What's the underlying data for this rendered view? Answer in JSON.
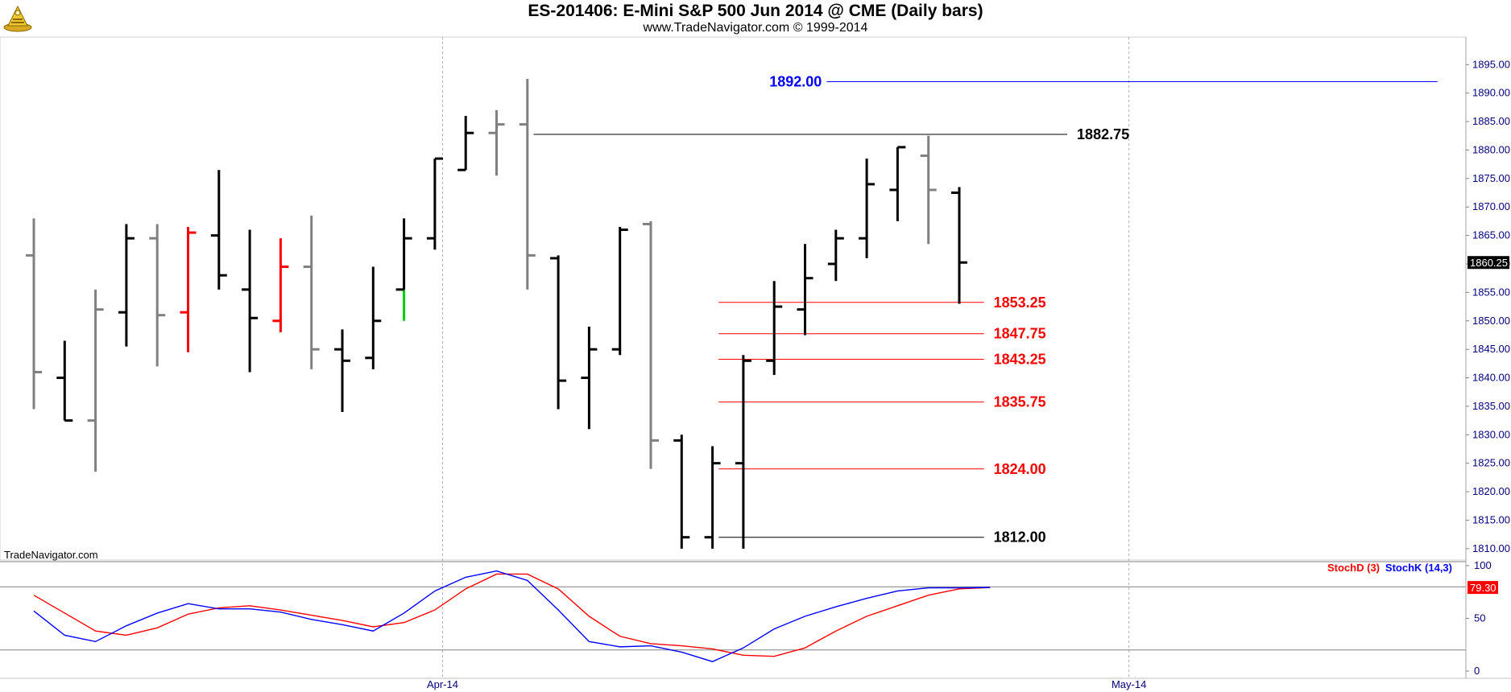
{
  "header": {
    "title": "ES-201406:  E-Mini S&P 500 Jun 2014 @ CME  (Daily bars)",
    "subtitle": "www.TradeNavigator.com © 1999-2014",
    "watermark": "TradeNavigator.com"
  },
  "colors": {
    "bar_black": "#000000",
    "bar_gray": "#808080",
    "bar_red": "#ff0000",
    "bar_green": "#00cc00",
    "level_red": "#ff0000",
    "level_blue": "#0000ff",
    "stochK": "#0000ff",
    "stochD": "#ff0000",
    "grid": "#c8c8c8",
    "axis_text": "#000080"
  },
  "chart_data": [
    {
      "type": "ohlc",
      "ylim": [
        1808,
        1899
      ],
      "y_ticks": [
        1810,
        1815,
        1820,
        1825,
        1830,
        1835,
        1840,
        1845,
        1850,
        1855,
        1860,
        1865,
        1870,
        1875,
        1880,
        1885,
        1890,
        1895
      ],
      "x_labels": [
        {
          "label": "Apr-14",
          "index": 13.25
        },
        {
          "label": "May-14",
          "index": 35.5
        }
      ],
      "last_price": "1860.25",
      "bars": [
        {
          "o": 1861.5,
          "h": 1868,
          "l": 1834.5,
          "c": 1841,
          "color": "gray"
        },
        {
          "o": 1840,
          "h": 1846.5,
          "l": 1832.5,
          "c": 1832.5,
          "color": "black"
        },
        {
          "o": 1832.5,
          "h": 1855.5,
          "l": 1823.5,
          "c": 1852,
          "color": "gray"
        },
        {
          "o": 1851.5,
          "h": 1867,
          "l": 1845.5,
          "c": 1864.5,
          "color": "black"
        },
        {
          "o": 1864.5,
          "h": 1867,
          "l": 1842,
          "c": 1851,
          "color": "gray"
        },
        {
          "o": 1851.5,
          "h": 1866.5,
          "l": 1844.5,
          "c": 1865.5,
          "color": "red"
        },
        {
          "o": 1865,
          "h": 1876.5,
          "l": 1855.5,
          "c": 1858,
          "color": "black"
        },
        {
          "o": 1855.5,
          "h": 1866,
          "l": 1841,
          "c": 1850.5,
          "color": "black"
        },
        {
          "o": 1850,
          "h": 1864.5,
          "l": 1848,
          "c": 1859.5,
          "color": "red"
        },
        {
          "o": 1859.5,
          "h": 1868.5,
          "l": 1841.5,
          "c": 1845,
          "color": "gray"
        },
        {
          "o": 1845,
          "h": 1848.5,
          "l": 1834,
          "c": 1843,
          "color": "black"
        },
        {
          "o": 1843.5,
          "h": 1859.5,
          "l": 1841.5,
          "c": 1850,
          "color": "black"
        },
        {
          "o": 1855.5,
          "h": 1868,
          "l": 1850,
          "c": 1864.5,
          "color": "black",
          "low_color": "green"
        },
        {
          "o": 1864.5,
          "h": 1878.5,
          "l": 1862.5,
          "c": 1878.5,
          "color": "black"
        },
        {
          "o": 1876.5,
          "h": 1886,
          "l": 1876.5,
          "c": 1883,
          "color": "black"
        },
        {
          "o": 1883,
          "h": 1887,
          "l": 1875.5,
          "c": 1884.5,
          "color": "gray"
        },
        {
          "o": 1884.5,
          "h": 1892.5,
          "l": 1855.5,
          "c": 1861.5,
          "color": "gray"
        },
        {
          "o": 1861,
          "h": 1861.5,
          "l": 1834.5,
          "c": 1839.5,
          "color": "black"
        },
        {
          "o": 1840,
          "h": 1849,
          "l": 1831,
          "c": 1845,
          "color": "black"
        },
        {
          "o": 1845,
          "h": 1866.5,
          "l": 1844,
          "c": 1866,
          "color": "black"
        },
        {
          "o": 1867,
          "h": 1867.5,
          "l": 1824,
          "c": 1829,
          "color": "gray"
        },
        {
          "o": 1829,
          "h": 1830,
          "l": 1810,
          "c": 1812,
          "color": "black"
        },
        {
          "o": 1812,
          "h": 1828,
          "l": 1810,
          "c": 1825,
          "color": "black"
        },
        {
          "o": 1825,
          "h": 1844,
          "l": 1810,
          "c": 1843,
          "color": "black"
        },
        {
          "o": 1843,
          "h": 1857,
          "l": 1840.5,
          "c": 1852.5,
          "color": "black"
        },
        {
          "o": 1852,
          "h": 1863.5,
          "l": 1847.5,
          "c": 1857.5,
          "color": "black"
        },
        {
          "o": 1860,
          "h": 1866,
          "l": 1857,
          "c": 1864.5,
          "color": "black"
        },
        {
          "o": 1864.5,
          "h": 1878.5,
          "l": 1861,
          "c": 1874,
          "color": "black"
        },
        {
          "o": 1873,
          "h": 1880.5,
          "l": 1867.5,
          "c": 1880.5,
          "color": "black"
        },
        {
          "o": 1879,
          "h": 1882.5,
          "l": 1863.5,
          "c": 1873,
          "color": "gray"
        },
        {
          "o": 1872.5,
          "h": 1873.5,
          "l": 1853,
          "c": 1860.25,
          "color": "black"
        }
      ],
      "levels": [
        {
          "value": 1892.0,
          "label": "1892.00",
          "color": "blue",
          "from": 25.7,
          "to": 45.5
        },
        {
          "value": 1882.75,
          "label": "1882.75",
          "color": "black",
          "from": 16.2,
          "to": 33.5
        },
        {
          "value": 1853.25,
          "label": "1853.25",
          "color": "red",
          "from": 22.2,
          "to": 30.8
        },
        {
          "value": 1847.75,
          "label": "1847.75",
          "color": "red",
          "from": 22.2,
          "to": 30.8
        },
        {
          "value": 1843.25,
          "label": "1843.25",
          "color": "red",
          "from": 22.2,
          "to": 30.8
        },
        {
          "value": 1835.75,
          "label": "1835.75",
          "color": "red",
          "from": 22.2,
          "to": 30.8
        },
        {
          "value": 1824.0,
          "label": "1824.00",
          "color": "red",
          "from": 22.2,
          "to": 30.8
        },
        {
          "value": 1812.0,
          "label": "1812.00",
          "color": "black",
          "from": 22.2,
          "to": 30.8
        }
      ]
    },
    {
      "type": "line",
      "ylim": [
        0,
        100
      ],
      "y_ticks": [
        0,
        50,
        100
      ],
      "reference_lines": [
        80,
        20
      ],
      "last_value": "79.30",
      "series": [
        {
          "name": "StochD (3)",
          "color": "red",
          "values": [
            72,
            55,
            38,
            34,
            41,
            54,
            60,
            62,
            58,
            53,
            48,
            42,
            46,
            58,
            78,
            92,
            92,
            78,
            52,
            33,
            26,
            24,
            21,
            15,
            14,
            22,
            38,
            52,
            62,
            72,
            78,
            79.3
          ]
        },
        {
          "name": "StochK (14,3)",
          "color": "blue",
          "values": [
            57,
            34,
            28,
            43,
            55,
            64,
            59,
            59,
            56,
            49,
            44,
            38,
            55,
            76,
            89,
            95,
            86,
            58,
            28,
            23,
            24,
            18,
            9,
            22,
            40,
            52,
            61,
            69,
            76,
            79,
            79,
            79.3
          ]
        }
      ]
    }
  ]
}
